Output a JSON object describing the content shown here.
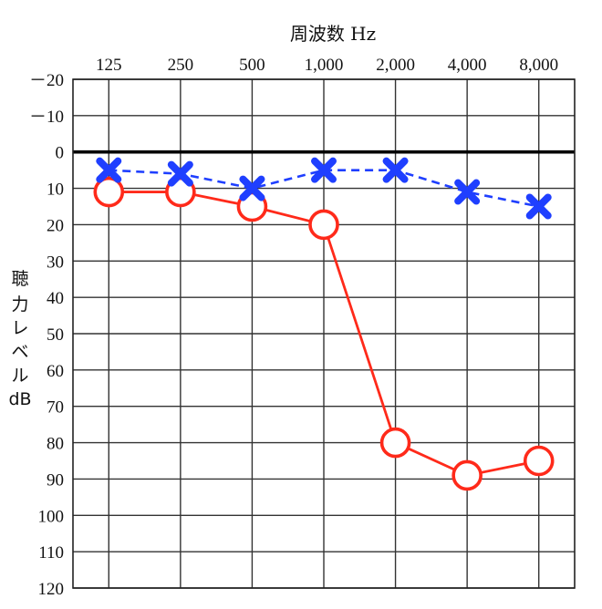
{
  "chart_data": {
    "type": "line",
    "title": "",
    "xlabel": "周波数 Hz",
    "ylabel_chars": [
      "聴",
      "力",
      "レ",
      "ベ",
      "ル",
      "dB"
    ],
    "x": [
      "125",
      "250",
      "500",
      "1,000",
      "2,000",
      "4,000",
      "8,000"
    ],
    "y_ticks": [
      "－20",
      "－10",
      "0",
      "10",
      "20",
      "30",
      "40",
      "50",
      "60",
      "70",
      "80",
      "90",
      "100",
      "110",
      "120"
    ],
    "ylim": [
      -20,
      120
    ],
    "y_inverted": true,
    "grid": true,
    "series": [
      {
        "key": "right",
        "marker": "circle",
        "line": "solid",
        "color": "#ff2a1a",
        "values": [
          11,
          11,
          15,
          20,
          80,
          89,
          85
        ]
      },
      {
        "key": "left",
        "marker": "cross",
        "line": "dashed",
        "color": "#1f3fff",
        "values": [
          5,
          6,
          10,
          5,
          5,
          11,
          15
        ]
      }
    ]
  }
}
